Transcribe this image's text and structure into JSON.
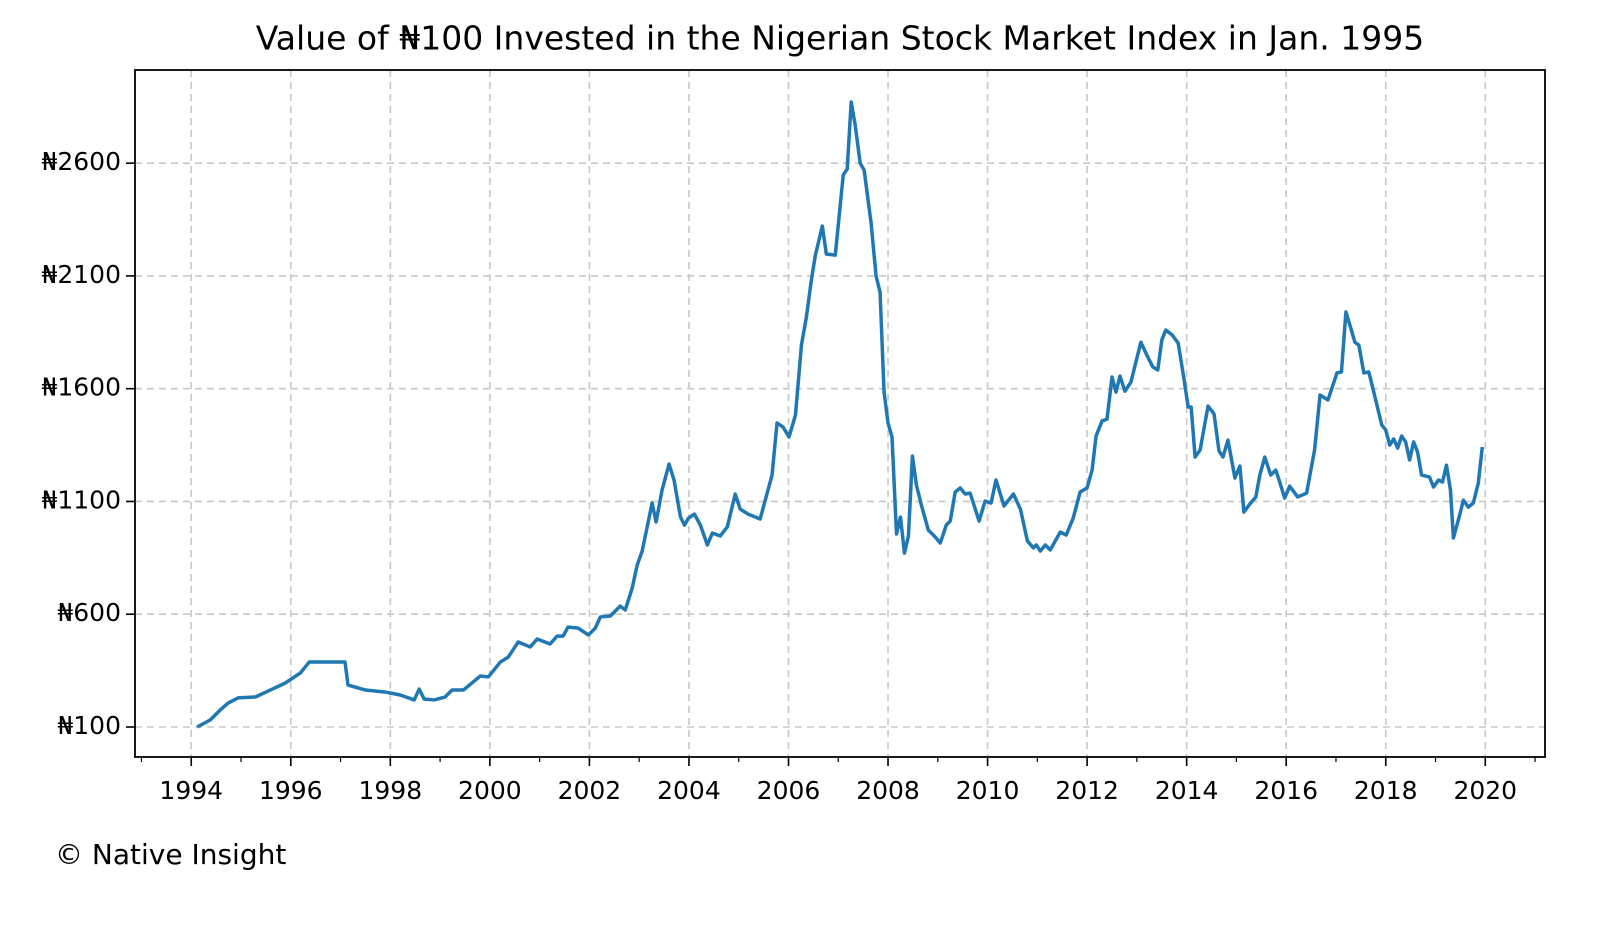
{
  "chart_data": {
    "type": "line",
    "title": "Value of ₦100 Invested in the Nigerian Stock Market Index in Jan. 1995",
    "footer": "© Native Insight",
    "xlim": [
      1992.87,
      2021.2
    ],
    "ylim": [
      -33,
      3013
    ],
    "xticks": [
      1994,
      1996,
      1998,
      2000,
      2002,
      2004,
      2006,
      2008,
      2010,
      2012,
      2014,
      2016,
      2018,
      2020
    ],
    "x_minor_ticks": [
      1993,
      1995,
      1997,
      1999,
      2001,
      2003,
      2005,
      2007,
      2009,
      2011,
      2013,
      2015,
      2017,
      2019,
      2021
    ],
    "yticks": [
      {
        "value": 100,
        "label": "₦100"
      },
      {
        "value": 600,
        "label": "₦600"
      },
      {
        "value": 1100,
        "label": "₦1100"
      },
      {
        "value": 1600,
        "label": "₦1600"
      },
      {
        "value": 2100,
        "label": "₦2100"
      },
      {
        "value": 2600,
        "label": "₦2600"
      }
    ],
    "grid": true,
    "x": [
      1994.12,
      1994.38,
      1994.58,
      1994.74,
      1994.94,
      1995.29,
      1995.55,
      1995.89,
      1996.19,
      1996.37,
      1996.49,
      1997.09,
      1997.15,
      1997.5,
      1997.9,
      1998.2,
      1998.48,
      1998.58,
      1998.68,
      1998.88,
      1999.1,
      1999.24,
      1999.47,
      1999.71,
      1999.81,
      1999.97,
      2000.21,
      2000.37,
      2000.57,
      2000.81,
      2000.95,
      2001.21,
      2001.35,
      2001.47,
      2001.57,
      2001.77,
      2001.98,
      2002.12,
      2002.22,
      2002.42,
      2002.62,
      2002.72,
      2002.86,
      2002.96,
      2003.06,
      2003.26,
      2003.34,
      2003.46,
      2003.6,
      2003.7,
      2003.83,
      2003.91,
      2003.99,
      2004.11,
      2004.23,
      2004.37,
      2004.47,
      2004.63,
      2004.77,
      2004.93,
      2005.03,
      2005.19,
      2005.43,
      2005.67,
      2005.77,
      2005.89,
      2006.01,
      2006.14,
      2006.26,
      2006.36,
      2006.46,
      2006.54,
      2006.68,
      2006.76,
      2006.94,
      2007.1,
      2007.18,
      2007.26,
      2007.34,
      2007.44,
      2007.52,
      2007.66,
      2007.76,
      2007.84,
      2007.92,
      2008.0,
      2008.08,
      2008.17,
      2008.25,
      2008.33,
      2008.41,
      2008.49,
      2008.57,
      2008.67,
      2008.81,
      2008.93,
      2009.05,
      2009.17,
      2009.25,
      2009.35,
      2009.45,
      2009.55,
      2009.65,
      2009.83,
      2009.95,
      2010.07,
      2010.17,
      2010.33,
      2010.52,
      2010.66,
      2010.8,
      2010.92,
      2010.98,
      2011.06,
      2011.16,
      2011.26,
      2011.46,
      2011.58,
      2011.72,
      2011.86,
      2012.0,
      2012.1,
      2012.18,
      2012.3,
      2012.4,
      2012.5,
      2012.58,
      2012.66,
      2012.76,
      2012.88,
      2013.08,
      2013.2,
      2013.32,
      2013.42,
      2013.5,
      2013.58,
      2013.71,
      2013.83,
      2013.95,
      2014.03,
      2014.09,
      2014.17,
      2014.27,
      2014.43,
      2014.55,
      2014.65,
      2014.73,
      2014.83,
      2014.97,
      2015.07,
      2015.15,
      2015.27,
      2015.39,
      2015.47,
      2015.57,
      2015.69,
      2015.79,
      2015.87,
      2015.97,
      2016.07,
      2016.23,
      2016.41,
      2016.57,
      2016.68,
      2016.84,
      2017.02,
      2017.11,
      2017.2,
      2017.28,
      2017.38,
      2017.46,
      2017.56,
      2017.66,
      2017.76,
      2017.92,
      2018.0,
      2018.08,
      2018.16,
      2018.24,
      2018.32,
      2018.4,
      2018.48,
      2018.56,
      2018.64,
      2018.72,
      2018.88,
      2018.96,
      2019.06,
      2019.14,
      2019.22,
      2019.3,
      2019.36,
      2019.48,
      2019.56,
      2019.66,
      2019.76,
      2019.86,
      2019.94
    ],
    "series": [
      {
        "color": "#1f77b4",
        "values": [
          100,
          131,
          175,
          206,
          229,
          233,
          260,
          295,
          339,
          388,
          388,
          388,
          286,
          264,
          255,
          242,
          220,
          268,
          224,
          220,
          233,
          264,
          264,
          308,
          326,
          322,
          388,
          410,
          477,
          455,
          490,
          468,
          503,
          503,
          543,
          539,
          508,
          539,
          588,
          592,
          636,
          619,
          716,
          818,
          880,
          1093,
          1009,
          1151,
          1266,
          1195,
          1031,
          995,
          1026,
          1044,
          995,
          907,
          960,
          947,
          987,
          1133,
          1066,
          1044,
          1022,
          1217,
          1448,
          1430,
          1386,
          1483,
          1793,
          1918,
          2082,
          2192,
          2321,
          2197,
          2192,
          2547,
          2574,
          2871,
          2769,
          2600,
          2569,
          2334,
          2099,
          2028,
          1585,
          1448,
          1386,
          956,
          1031,
          871,
          947,
          1301,
          1173,
          1084,
          973,
          947,
          916,
          995,
          1013,
          1142,
          1160,
          1133,
          1137,
          1013,
          1102,
          1093,
          1195,
          1080,
          1133,
          1066,
          925,
          894,
          907,
          880,
          907,
          885,
          964,
          951,
          1026,
          1142,
          1160,
          1239,
          1390,
          1457,
          1465,
          1652,
          1585,
          1656,
          1589,
          1629,
          1806,
          1749,
          1696,
          1683,
          1815,
          1860,
          1838,
          1802,
          1638,
          1519,
          1519,
          1297,
          1328,
          1523,
          1488,
          1324,
          1297,
          1372,
          1204,
          1257,
          1053,
          1089,
          1120,
          1217,
          1297,
          1217,
          1239,
          1186,
          1115,
          1168,
          1120,
          1137,
          1328,
          1572,
          1550,
          1670,
          1674,
          1940,
          1882,
          1806,
          1793,
          1670,
          1674,
          1585,
          1439,
          1417,
          1350,
          1377,
          1337,
          1390,
          1364,
          1284,
          1364,
          1319,
          1217,
          1208,
          1164,
          1195,
          1186,
          1261,
          1151,
          938,
          1035,
          1106,
          1075,
          1093,
          1182,
          1341
        ]
      }
    ]
  }
}
